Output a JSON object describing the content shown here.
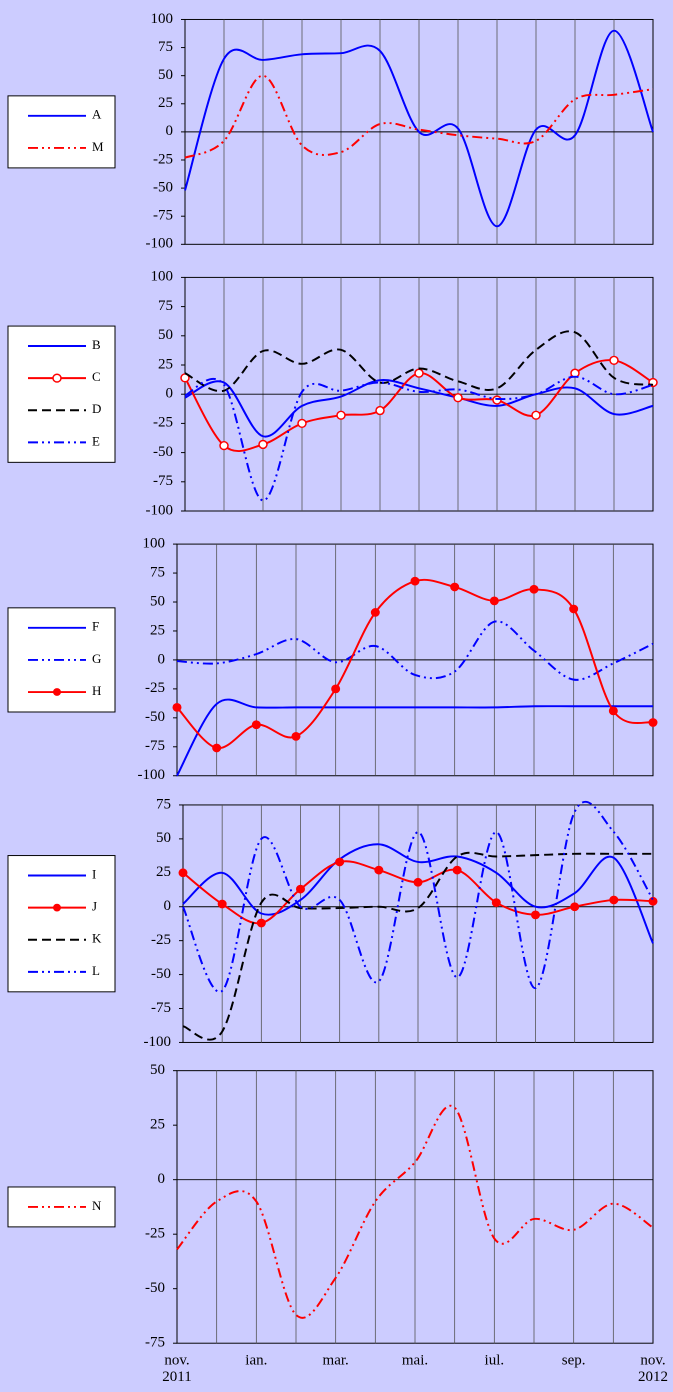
{
  "chart_data": [
    {
      "type": "line",
      "ylim": [
        -100,
        100
      ],
      "yticks": [
        100,
        75,
        50,
        25,
        0,
        -25,
        -50,
        -75,
        -100
      ],
      "series": [
        {
          "name": "A",
          "color": "#0000ff",
          "dash": "solid",
          "marker": "none",
          "values": [
            -52,
            65,
            64,
            69,
            70,
            72,
            0,
            3,
            -84,
            2,
            -3,
            90,
            0
          ]
        },
        {
          "name": "M",
          "color": "#ff0000",
          "dash": "dashdotdot",
          "marker": "none",
          "values": [
            -23,
            -8,
            50,
            -12,
            -18,
            7,
            2,
            -3,
            -6,
            -8,
            29,
            33,
            38
          ]
        }
      ]
    },
    {
      "type": "line",
      "ylim": [
        -100,
        100
      ],
      "yticks": [
        100,
        75,
        50,
        25,
        0,
        -25,
        -50,
        -75,
        -100
      ],
      "series": [
        {
          "name": "B",
          "color": "#0000ff",
          "dash": "solid",
          "marker": "none",
          "values": [
            -3,
            10,
            -36,
            -10,
            -2,
            12,
            5,
            -3,
            -10,
            0,
            5,
            -17,
            -10
          ]
        },
        {
          "name": "C",
          "color": "#ff0000",
          "dash": "solid",
          "marker": "open-circle",
          "values": [
            14,
            -44,
            -43,
            -25,
            -18,
            -14,
            18,
            -3,
            -5,
            -18,
            18,
            29,
            10
          ]
        },
        {
          "name": "D",
          "color": "#000000",
          "dash": "dash",
          "marker": "none",
          "values": [
            18,
            3,
            37,
            26,
            38,
            10,
            22,
            11,
            5,
            38,
            53,
            14,
            8
          ]
        },
        {
          "name": "E",
          "color": "#0000ff",
          "dash": "dashdotdot",
          "marker": "none",
          "values": [
            -1,
            8,
            -91,
            2,
            3,
            10,
            2,
            4,
            -4,
            0,
            15,
            0,
            8
          ]
        }
      ]
    },
    {
      "type": "line",
      "ylim": [
        -100,
        100
      ],
      "yticks": [
        100,
        75,
        50,
        25,
        0,
        -25,
        -50,
        -75,
        -100
      ],
      "series": [
        {
          "name": "F",
          "color": "#0000ff",
          "dash": "solid",
          "marker": "none",
          "values": [
            -100,
            -38,
            -41,
            -41,
            -41,
            -41,
            -41,
            -41,
            -41,
            -40,
            -40,
            -40,
            -40
          ]
        },
        {
          "name": "G",
          "color": "#0000ff",
          "dash": "dashdotdot",
          "marker": "none",
          "values": [
            -1,
            -3,
            5,
            18,
            -2,
            12,
            -13,
            -10,
            33,
            8,
            -17,
            -3,
            14
          ]
        },
        {
          "name": "H",
          "color": "#ff0000",
          "dash": "solid",
          "marker": "filled-circle",
          "values": [
            -41,
            -76,
            -56,
            -66,
            -25,
            41,
            68,
            63,
            51,
            61,
            44,
            -44,
            -54
          ]
        }
      ]
    },
    {
      "type": "line",
      "ylim": [
        -100,
        75
      ],
      "yticks": [
        75,
        50,
        25,
        0,
        -25,
        -50,
        -75,
        -100
      ],
      "series": [
        {
          "name": "I",
          "color": "#0000ff",
          "dash": "solid",
          "marker": "none",
          "values": [
            2,
            25,
            -5,
            5,
            35,
            46,
            33,
            37,
            25,
            0,
            10,
            36,
            -27
          ]
        },
        {
          "name": "J",
          "color": "#ff0000",
          "dash": "solid",
          "marker": "filled-circle",
          "values": [
            25,
            2,
            -12,
            13,
            33,
            27,
            18,
            27,
            3,
            -6,
            0,
            5,
            4
          ]
        },
        {
          "name": "K",
          "color": "#000000",
          "dash": "dash",
          "marker": "none",
          "values": [
            -88,
            -92,
            3,
            -1,
            -1,
            0,
            -1,
            37,
            37,
            38,
            39,
            39,
            39
          ]
        },
        {
          "name": "L",
          "color": "#0000ff",
          "dash": "dashdotdot",
          "marker": "none",
          "values": [
            0,
            -62,
            50,
            0,
            5,
            -55,
            55,
            -52,
            55,
            -60,
            70,
            55,
            5
          ]
        }
      ]
    },
    {
      "type": "line",
      "ylim": [
        -75,
        50
      ],
      "yticks": [
        50,
        25,
        0,
        -25,
        -50,
        -75
      ],
      "categories": [
        "nov.\n2011",
        null,
        "ian.",
        null,
        "mar.",
        null,
        "mai.",
        null,
        "iul.",
        null,
        "sep.",
        null,
        "nov.\n2012"
      ],
      "series": [
        {
          "name": "N",
          "color": "#ff0000",
          "dash": "dashdotdot",
          "marker": "none",
          "values": [
            -32,
            -10,
            -10,
            -62,
            -45,
            -10,
            8,
            33,
            -27,
            -18,
            -23,
            -11,
            -22
          ]
        }
      ]
    }
  ]
}
